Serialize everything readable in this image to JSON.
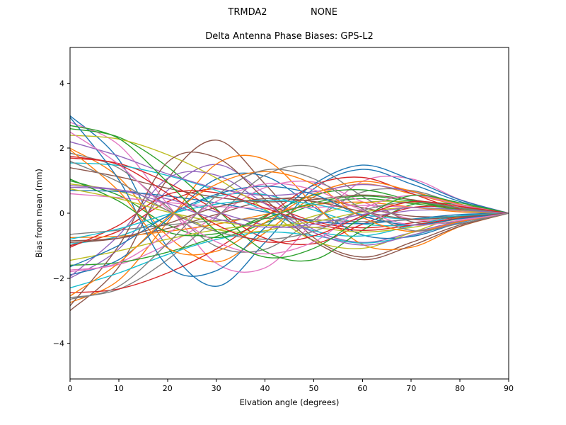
{
  "chart_data": {
    "type": "line",
    "suptitle_left": "TRMDA2",
    "suptitle_right": "NONE",
    "title": "Delta Antenna Phase Biases: GPS-L2",
    "xlabel": "Elvation angle (degrees)",
    "ylabel": "Bias from mean (mm)",
    "xlim": [
      0,
      90
    ],
    "ylim": [
      -5.1,
      5.1
    ],
    "xticks": [
      0,
      10,
      20,
      30,
      40,
      50,
      60,
      70,
      80,
      90
    ],
    "yticks": [
      -4,
      -2,
      0,
      2,
      4
    ],
    "grid": false,
    "legend": "none",
    "background": "#ffffff",
    "axis_color": "#000000",
    "line_width": 1.4,
    "palette": [
      "#1f77b4",
      "#ff7f0e",
      "#2ca02c",
      "#d62728",
      "#9467bd",
      "#8c564b",
      "#e377c2",
      "#7f7f7f",
      "#bcbd22",
      "#17becf"
    ],
    "x": [
      0,
      10,
      20,
      30,
      40,
      50,
      60,
      70,
      80,
      90
    ],
    "series": [
      {
        "values": [
          3.0,
          1.65,
          -1.05,
          -2.25,
          -0.9,
          0.75,
          1.35,
          0.9,
          0.36,
          0
        ]
      },
      {
        "values": [
          2.0,
          1.1,
          -0.7,
          -1.5,
          -0.6,
          0.5,
          0.9,
          0.6,
          0.24,
          0
        ]
      },
      {
        "values": [
          1.0,
          0.55,
          -0.35,
          -0.75,
          -0.3,
          0.25,
          0.45,
          0.3,
          0.12,
          0
        ]
      },
      {
        "values": [
          -1.0,
          -0.55,
          0.35,
          0.75,
          0.3,
          -0.25,
          -0.45,
          -0.3,
          -0.12,
          0
        ]
      },
      {
        "values": [
          -2.0,
          -1.1,
          0.7,
          1.5,
          0.6,
          -0.5,
          -0.9,
          -0.6,
          -0.24,
          0
        ]
      },
      {
        "values": [
          -3.0,
          -1.65,
          1.05,
          2.25,
          0.9,
          -0.75,
          -1.35,
          -0.9,
          -0.36,
          0
        ]
      },
      {
        "values": [
          2.8,
          2.1,
          0.28,
          -1.54,
          -1.68,
          -0.28,
          0.98,
          1.06,
          0.42,
          0
        ]
      },
      {
        "values": [
          1.85,
          1.39,
          0.19,
          -1.02,
          -1.11,
          -0.19,
          0.65,
          0.7,
          0.28,
          0
        ]
      },
      {
        "values": [
          0.9,
          0.68,
          0.09,
          -0.5,
          -0.54,
          -0.09,
          0.32,
          0.34,
          0.14,
          0
        ]
      },
      {
        "values": [
          -0.95,
          -0.71,
          -0.1,
          0.52,
          0.57,
          0.1,
          -0.33,
          -0.36,
          -0.14,
          0
        ]
      },
      {
        "values": [
          -1.9,
          -1.43,
          -0.19,
          1.05,
          1.14,
          0.19,
          -0.67,
          -0.72,
          -0.29,
          0
        ]
      },
      {
        "values": [
          -2.75,
          -2.06,
          -0.28,
          1.51,
          1.65,
          0.28,
          -0.96,
          -1.05,
          -0.41,
          0
        ]
      },
      {
        "values": [
          2.6,
          2.34,
          1.43,
          0.13,
          -1.17,
          -1.43,
          -0.52,
          0.26,
          0.26,
          0
        ]
      },
      {
        "values": [
          1.7,
          1.53,
          0.94,
          0.09,
          -0.77,
          -0.94,
          -0.34,
          0.17,
          0.17,
          0
        ]
      },
      {
        "values": [
          0.8,
          0.72,
          0.44,
          0.04,
          -0.36,
          -0.44,
          -0.16,
          0.08,
          0.08,
          0
        ]
      },
      {
        "values": [
          -0.85,
          -0.77,
          -0.47,
          -0.04,
          0.38,
          0.47,
          0.17,
          -0.09,
          -0.09,
          0
        ]
      },
      {
        "values": [
          -1.75,
          -1.58,
          -0.96,
          -0.09,
          0.79,
          0.96,
          0.35,
          -0.18,
          -0.18,
          0
        ]
      },
      {
        "values": [
          -2.6,
          -2.34,
          -1.43,
          -0.13,
          1.17,
          1.43,
          0.52,
          -0.26,
          -0.26,
          0
        ]
      },
      {
        "values": [
          2.4,
          2.28,
          1.8,
          1.08,
          0.12,
          -0.84,
          -1.08,
          -0.6,
          -0.12,
          0
        ]
      },
      {
        "values": [
          1.55,
          1.47,
          1.16,
          0.7,
          0.08,
          -0.54,
          -0.7,
          -0.39,
          -0.08,
          0
        ]
      },
      {
        "values": [
          0.7,
          0.67,
          0.53,
          0.32,
          0.04,
          -0.25,
          -0.32,
          -0.18,
          -0.04,
          0
        ]
      },
      {
        "values": [
          -0.75,
          -0.71,
          -0.56,
          -0.34,
          -0.04,
          0.26,
          0.34,
          0.19,
          0.04,
          0
        ]
      },
      {
        "values": [
          -1.6,
          -1.52,
          -1.2,
          -0.72,
          -0.08,
          0.56,
          0.72,
          0.4,
          0.08,
          0
        ]
      },
      {
        "values": [
          -2.45,
          -2.33,
          -1.84,
          -1.1,
          -0.12,
          0.86,
          1.1,
          0.61,
          0.12,
          0
        ]
      },
      {
        "values": [
          2.2,
          1.76,
          1.21,
          0.77,
          0.55,
          0.66,
          0.88,
          0.66,
          0.26,
          0
        ]
      },
      {
        "values": [
          1.4,
          1.12,
          0.77,
          0.49,
          0.35,
          0.42,
          0.56,
          0.42,
          0.17,
          0
        ]
      },
      {
        "values": [
          0.6,
          0.48,
          0.33,
          0.21,
          0.15,
          0.18,
          0.24,
          0.18,
          0.07,
          0
        ]
      },
      {
        "values": [
          -0.65,
          -0.52,
          -0.36,
          -0.23,
          -0.16,
          -0.2,
          -0.26,
          -0.2,
          -0.08,
          0
        ]
      },
      {
        "values": [
          -1.45,
          -1.16,
          -0.8,
          -0.51,
          -0.36,
          -0.44,
          -0.58,
          -0.44,
          -0.17,
          0
        ]
      },
      {
        "values": [
          -2.3,
          -1.84,
          -1.27,
          -0.81,
          -0.58,
          -0.69,
          -0.92,
          -0.69,
          -0.28,
          0
        ]
      },
      {
        "values": [
          2.95,
          1.03,
          -1.62,
          -1.77,
          -0.44,
          0.89,
          1.48,
          1.03,
          0.41,
          0
        ]
      },
      {
        "values": [
          1.95,
          0.68,
          -1.07,
          -1.17,
          -0.29,
          0.59,
          0.98,
          0.68,
          0.27,
          0
        ]
      },
      {
        "values": [
          1.05,
          0.37,
          -0.58,
          -0.63,
          -0.16,
          0.32,
          0.53,
          0.37,
          0.15,
          0
        ]
      },
      {
        "values": [
          -1.05,
          -0.37,
          0.58,
          0.63,
          0.16,
          -0.32,
          -0.53,
          -0.37,
          -0.15,
          0
        ]
      },
      {
        "values": [
          -1.95,
          -0.68,
          1.07,
          1.17,
          0.29,
          -0.59,
          -0.98,
          -0.68,
          -0.27,
          0
        ]
      },
      {
        "values": [
          -2.85,
          -1.0,
          1.57,
          1.71,
          0.43,
          -0.86,
          -1.43,
          -1.0,
          -0.4,
          0
        ]
      },
      {
        "values": [
          2.5,
          1.5,
          0.13,
          -0.88,
          -1.25,
          -0.88,
          0.13,
          0.55,
          0.25,
          0
        ]
      },
      {
        "values": [
          1.6,
          0.96,
          0.08,
          -0.56,
          -0.8,
          -0.56,
          0.08,
          0.35,
          0.16,
          0
        ]
      },
      {
        "values": [
          0.75,
          0.45,
          0.04,
          -0.26,
          -0.38,
          -0.26,
          0.04,
          0.17,
          0.08,
          0
        ]
      },
      {
        "values": [
          -0.8,
          -0.48,
          -0.04,
          0.28,
          0.4,
          0.28,
          -0.04,
          -0.18,
          -0.08,
          0
        ]
      },
      {
        "values": [
          -1.65,
          -0.99,
          -0.08,
          0.58,
          0.83,
          0.58,
          -0.08,
          -0.36,
          -0.17,
          0
        ]
      },
      {
        "values": [
          -2.55,
          -1.53,
          -0.13,
          0.89,
          1.28,
          0.89,
          -0.13,
          -0.56,
          -0.26,
          0
        ]
      },
      {
        "values": [
          2.7,
          2.3,
          0.95,
          -0.54,
          -1.35,
          -1.08,
          -0.14,
          0.54,
          0.32,
          0
        ]
      },
      {
        "values": [
          1.75,
          1.49,
          0.61,
          -0.35,
          -0.88,
          -0.7,
          -0.09,
          0.35,
          0.21,
          0
        ]
      },
      {
        "values": [
          0.85,
          0.72,
          0.3,
          -0.17,
          -0.43,
          -0.34,
          -0.04,
          0.17,
          0.1,
          0
        ]
      },
      {
        "values": [
          -0.9,
          -0.77,
          -0.32,
          0.18,
          0.45,
          0.36,
          0.05,
          -0.18,
          -0.11,
          0
        ]
      },
      {
        "values": [
          -1.8,
          -1.53,
          -0.63,
          0.36,
          0.9,
          0.72,
          0.09,
          -0.36,
          -0.22,
          0
        ]
      },
      {
        "values": [
          -2.65,
          -2.25,
          -0.93,
          0.53,
          1.33,
          1.06,
          0.13,
          -0.53,
          -0.32,
          0
        ]
      }
    ]
  }
}
